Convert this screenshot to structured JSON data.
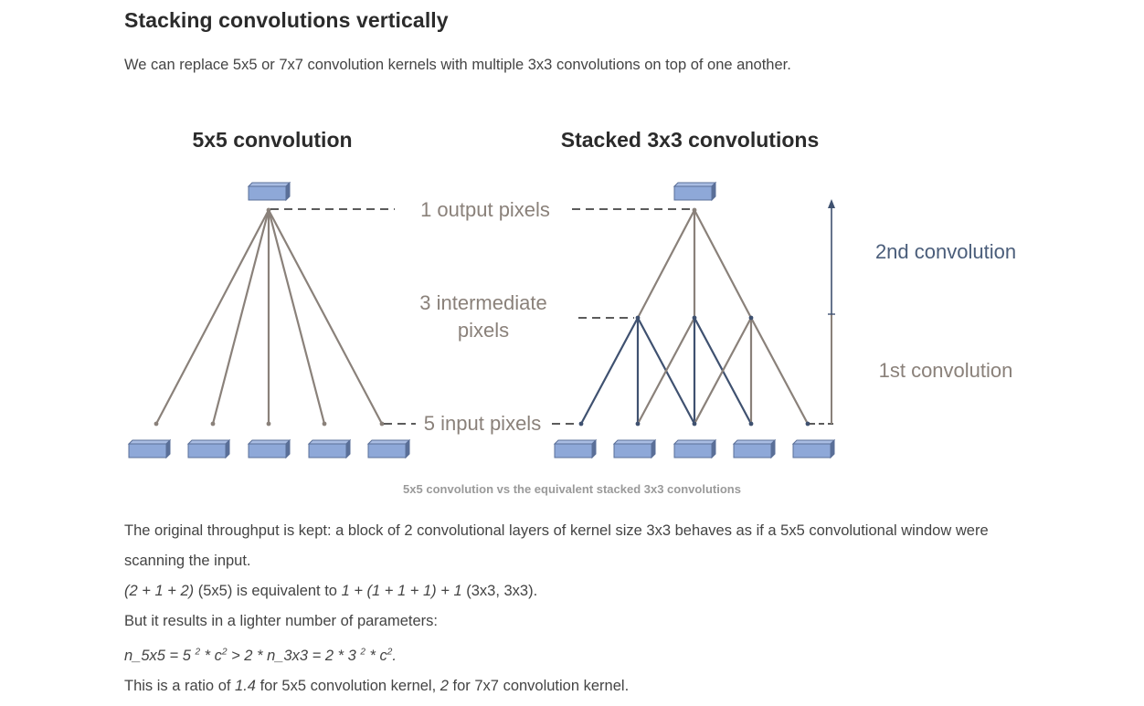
{
  "section": {
    "title": "Stacking convolutions vertically",
    "intro": "We can replace 5x5 or 7x7 convolution kernels with multiple 3x3 convolutions on top of one another."
  },
  "figure": {
    "left_title": "5x5 convolution",
    "right_title": "Stacked 3x3 convolutions",
    "label_output": "1 output pixels",
    "label_intermediate_1": "3 intermediate",
    "label_intermediate_2": "pixels",
    "label_input": "5 input pixels",
    "label_second_conv": "2nd convolution",
    "label_first_conv": "1st convolution",
    "colors": {
      "pixel_fill": "#8ea8d8",
      "pixel_top": "#a9bde3",
      "pixel_stroke": "#5a6f98",
      "gray_line": "#8a817a",
      "blue_line": "#3f5170",
      "label_gray": "#8a817a",
      "label_blue": "#4a5d7a"
    },
    "caption": "5x5 convolution vs the equivalent stacked 3x3 convolutions"
  },
  "text": {
    "p1": "The original throughput is kept: a block of 2 convolutional layers of kernel size 3x3 behaves as if a 5x5 convolutional window were scanning the input.",
    "p2_a": "(2 + 1 + 2)",
    "p2_b": " (5x5) is equivalent to ",
    "p2_c": "1 + (1 + 1 + 1) + 1",
    "p2_d": " (3x3, 3x3).",
    "p3": "But it results in a lighter number of parameters:",
    "p4_a": "n_5x5 = 5 ",
    "p4_sup1": "2",
    "p4_b": " * c",
    "p4_sup2": "2",
    "p4_c": " > 2 * n_3x3 = 2 * 3 ",
    "p4_sup3": "2",
    "p4_d": " * c",
    "p4_sup4": "2",
    "p4_e": ".",
    "p5_a": "This is a ratio of ",
    "p5_b": "1.4",
    "p5_c": " for 5x5 convolution kernel, ",
    "p5_d": "2",
    "p5_e": " for 7x7 convolution kernel."
  }
}
